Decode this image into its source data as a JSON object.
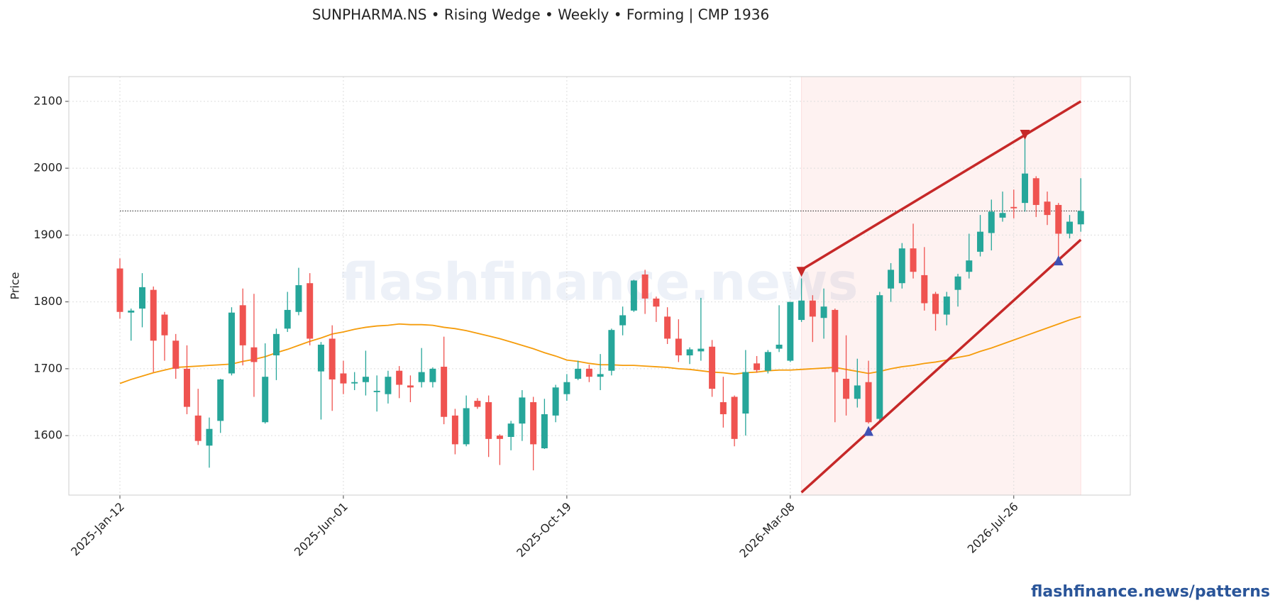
{
  "chart_data": {
    "type": "candlestick",
    "title": "SUNPHARMA.NS  •  Rising Wedge  •  Weekly  •  Forming  |  CMP 1936",
    "y_label": "Price",
    "watermark": "flashfinance.news",
    "footer": "flashfinance.news/patterns",
    "up_color": "#26a69a",
    "down_color": "#ef5350",
    "x": [
      "2025-01-12",
      "2025-01-19",
      "2025-01-26",
      "2025-02-02",
      "2025-02-09",
      "2025-02-16",
      "2025-02-23",
      "2025-03-02",
      "2025-03-09",
      "2025-03-16",
      "2025-03-23",
      "2025-03-30",
      "2025-04-06",
      "2025-04-13",
      "2025-04-20",
      "2025-04-27",
      "2025-05-04",
      "2025-05-11",
      "2025-05-18",
      "2025-05-25",
      "2025-06-01",
      "2025-06-08",
      "2025-06-15",
      "2025-06-22",
      "2025-06-29",
      "2025-07-06",
      "2025-07-13",
      "2025-07-20",
      "2025-07-27",
      "2025-08-03",
      "2025-08-10",
      "2025-08-17",
      "2025-08-24",
      "2025-08-31",
      "2025-09-07",
      "2025-09-14",
      "2025-09-21",
      "2025-09-28",
      "2025-10-05",
      "2025-10-12",
      "2025-10-19",
      "2025-10-26",
      "2025-11-02",
      "2025-11-09",
      "2025-11-16",
      "2025-11-23",
      "2025-11-30",
      "2025-12-07",
      "2025-12-14",
      "2025-12-21",
      "2025-12-28",
      "2026-01-04",
      "2026-01-11",
      "2026-01-18",
      "2026-01-25",
      "2026-02-01",
      "2026-02-08",
      "2026-02-15",
      "2026-02-22",
      "2026-03-01",
      "2026-03-08",
      "2026-03-15",
      "2026-03-22",
      "2026-03-29",
      "2026-04-05",
      "2026-04-12",
      "2026-04-19",
      "2026-04-26",
      "2026-05-03",
      "2026-05-10",
      "2026-05-17",
      "2026-05-24",
      "2026-05-31",
      "2026-06-07",
      "2026-06-14",
      "2026-06-21",
      "2026-06-28",
      "2026-07-05",
      "2026-07-12",
      "2026-07-19",
      "2026-07-26",
      "2026-08-02",
      "2026-08-09",
      "2026-08-16",
      "2026-08-23",
      "2026-08-30",
      "2026-09-06"
    ],
    "open": [
      1850,
      1784,
      1790,
      1818,
      1781,
      1742,
      1700,
      1630,
      1585,
      1622,
      1693,
      1795,
      1732,
      1620,
      1720,
      1760,
      1785,
      1828,
      1696,
      1745,
      1693,
      1678,
      1680,
      1665,
      1662,
      1697,
      1675,
      1680,
      1680,
      1703,
      1630,
      1587,
      1652,
      1650,
      1600,
      1598,
      1618,
      1650,
      1581,
      1630,
      1662,
      1685,
      1700,
      1688,
      1697,
      1765,
      1787,
      1841,
      1805,
      1778,
      1745,
      1720,
      1726,
      1733,
      1650,
      1658,
      1633,
      1708,
      1697,
      1730,
      1712,
      1773,
      1802,
      1776,
      1788,
      1685,
      1655,
      1680,
      1625,
      1820,
      1828,
      1880,
      1840,
      1812,
      1781,
      1818,
      1845,
      1875,
      1903,
      1926,
      1942,
      1948,
      1985,
      1950,
      1945,
      1902,
      1916
    ],
    "high": [
      1865,
      1790,
      1843,
      1823,
      1785,
      1752,
      1735,
      1670,
      1627,
      1685,
      1792,
      1820,
      1812,
      1738,
      1760,
      1815,
      1851,
      1843,
      1740,
      1765,
      1712,
      1695,
      1727,
      1690,
      1697,
      1704,
      1690,
      1731,
      1702,
      1748,
      1640,
      1660,
      1656,
      1660,
      1602,
      1622,
      1668,
      1658,
      1655,
      1676,
      1692,
      1712,
      1706,
      1722,
      1760,
      1793,
      1833,
      1848,
      1808,
      1792,
      1774,
      1732,
      1806,
      1743,
      1688,
      1660,
      1728,
      1719,
      1728,
      1795,
      1800,
      1835,
      1810,
      1820,
      1790,
      1750,
      1715,
      1712,
      1815,
      1858,
      1888,
      1917,
      1882,
      1815,
      1815,
      1842,
      1902,
      1930,
      1953,
      1965,
      1968,
      2050,
      1988,
      1965,
      1948,
      1930,
      1985
    ],
    "low": [
      1775,
      1742,
      1762,
      1695,
      1712,
      1685,
      1632,
      1586,
      1552,
      1604,
      1690,
      1705,
      1658,
      1618,
      1683,
      1755,
      1780,
      1735,
      1624,
      1637,
      1662,
      1668,
      1660,
      1636,
      1648,
      1656,
      1650,
      1672,
      1672,
      1617,
      1572,
      1584,
      1640,
      1568,
      1556,
      1578,
      1592,
      1548,
      1580,
      1620,
      1652,
      1683,
      1680,
      1668,
      1690,
      1750,
      1785,
      1782,
      1770,
      1737,
      1710,
      1707,
      1712,
      1658,
      1612,
      1584,
      1600,
      1694,
      1693,
      1725,
      1710,
      1770,
      1740,
      1745,
      1620,
      1630,
      1642,
      1618,
      1622,
      1800,
      1820,
      1835,
      1787,
      1757,
      1765,
      1793,
      1835,
      1868,
      1877,
      1920,
      1925,
      1935,
      1927,
      1915,
      1865,
      1895,
      1905
    ],
    "close": [
      1785,
      1787,
      1822,
      1742,
      1750,
      1700,
      1643,
      1592,
      1610,
      1684,
      1784,
      1735,
      1710,
      1688,
      1752,
      1788,
      1825,
      1745,
      1736,
      1684,
      1678,
      1680,
      1688,
      1667,
      1688,
      1676,
      1672,
      1695,
      1700,
      1628,
      1587,
      1641,
      1643,
      1595,
      1595,
      1618,
      1657,
      1587,
      1632,
      1672,
      1680,
      1700,
      1688,
      1692,
      1758,
      1780,
      1832,
      1805,
      1793,
      1745,
      1720,
      1729,
      1730,
      1670,
      1632,
      1595,
      1695,
      1698,
      1725,
      1736,
      1800,
      1802,
      1778,
      1793,
      1695,
      1655,
      1675,
      1620,
      1810,
      1848,
      1880,
      1845,
      1798,
      1782,
      1808,
      1838,
      1862,
      1905,
      1935,
      1933,
      1940,
      1992,
      1945,
      1930,
      1902,
      1920,
      1936
    ],
    "moving_average": {
      "color": "#f59c0b",
      "values": [
        1678,
        1684,
        1689,
        1694,
        1698,
        1702,
        1703,
        1704,
        1705,
        1706,
        1707,
        1711,
        1714,
        1718,
        1724,
        1729,
        1735,
        1741,
        1746,
        1752,
        1755,
        1759,
        1762,
        1764,
        1765,
        1767,
        1766,
        1766,
        1765,
        1762,
        1760,
        1757,
        1753,
        1749,
        1745,
        1740,
        1735,
        1730,
        1724,
        1719,
        1713,
        1711,
        1708,
        1706,
        1706,
        1705,
        1705,
        1704,
        1703,
        1702,
        1700,
        1699,
        1697,
        1695,
        1694,
        1692,
        1694,
        1695,
        1697,
        1698,
        1698,
        1699,
        1700,
        1701,
        1702,
        1699,
        1696,
        1693,
        1696,
        1700,
        1703,
        1705,
        1708,
        1710,
        1713,
        1717,
        1720,
        1726,
        1731,
        1737,
        1743,
        1749,
        1755,
        1761,
        1767,
        1773,
        1778
      ]
    },
    "cmp_line": 1936,
    "pattern_region": [
      "2026-03-15",
      "2026-09-06"
    ],
    "upper_trendline": {
      "color": "#c62828",
      "x": [
        "2026-03-15",
        "2026-09-06"
      ],
      "values": [
        1848,
        2100
      ]
    },
    "lower_trendline": {
      "color": "#c62828",
      "x": [
        "2026-03-15",
        "2026-09-06"
      ],
      "values": [
        1515,
        1893
      ]
    },
    "pivot_highs": {
      "color": "#c62828",
      "x": [
        "2026-03-15",
        "2026-08-02"
      ],
      "values": [
        1845,
        2050
      ]
    },
    "pivot_lows": {
      "color": "#3f51b5",
      "x": [
        "2026-04-26",
        "2026-08-23"
      ],
      "values": [
        1607,
        1862
      ]
    },
    "xlim": [
      "2024-12-11",
      "2026-10-07"
    ],
    "ylim": [
      1511,
      2137
    ],
    "xticks": [
      {
        "value": "2025-01-12",
        "label": "2025-Jan-12"
      },
      {
        "value": "2025-06-01",
        "label": "2025-Jun-01"
      },
      {
        "value": "2025-10-19",
        "label": "2025-Oct-19"
      },
      {
        "value": "2026-03-08",
        "label": "2026-Mar-08"
      },
      {
        "value": "2026-07-26",
        "label": "2026-Jul-26"
      }
    ],
    "yticks": [
      1600,
      1700,
      1800,
      1900,
      2000,
      2100
    ],
    "grid": true
  }
}
